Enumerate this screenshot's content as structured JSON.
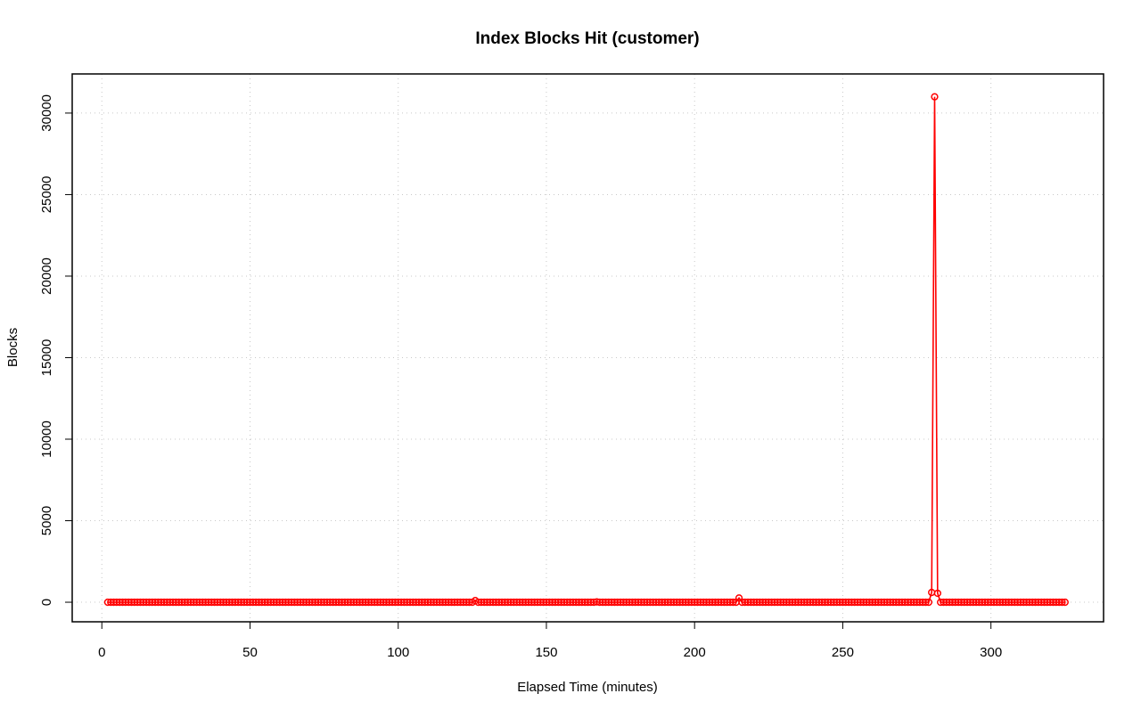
{
  "chart_data": {
    "type": "line",
    "title": "Index Blocks Hit (customer)",
    "xlabel": "Elapsed Time (minutes)",
    "ylabel": "Blocks",
    "xlim": [
      -10,
      338
    ],
    "ylim": [
      -1200,
      32400
    ],
    "xticks": [
      0,
      50,
      100,
      150,
      200,
      250,
      300
    ],
    "yticks": [
      0,
      5000,
      10000,
      15000,
      20000,
      25000,
      30000
    ],
    "grid": true,
    "markers": "open-circle",
    "series": [
      {
        "color": "#ff0000",
        "x_start": 2,
        "x_end": 325,
        "x_step": 1,
        "baseline": 0,
        "overrides": [
          {
            "x": 126,
            "y": 100
          },
          {
            "x": 167,
            "y": 20
          },
          {
            "x": 215,
            "y": 260
          },
          {
            "x": 280,
            "y": 600
          },
          {
            "x": 281,
            "y": 31000
          },
          {
            "x": 282,
            "y": 550
          }
        ]
      }
    ]
  }
}
